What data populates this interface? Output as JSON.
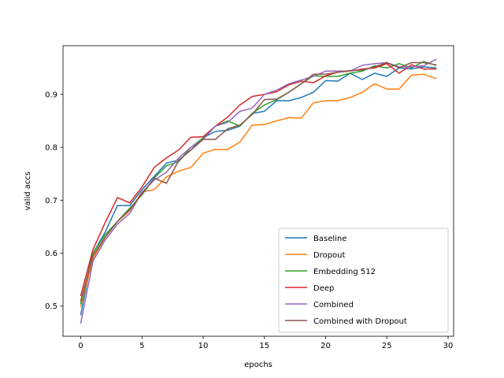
{
  "chart_data": {
    "type": "line",
    "xlabel": "epochs",
    "ylabel": "valid accs",
    "xlim": [
      -1.45,
      30.45
    ],
    "ylim": [
      0.443,
      0.992
    ],
    "xticks": [
      0,
      5,
      10,
      15,
      20,
      25,
      30
    ],
    "yticks": [
      0.5,
      0.6,
      0.7,
      0.8,
      0.9
    ],
    "xtick_labels": [
      "0",
      "5",
      "10",
      "15",
      "20",
      "25",
      "30"
    ],
    "ytick_labels": [
      "0.5",
      "0.6",
      "0.7",
      "0.8",
      "0.9"
    ],
    "grid": false,
    "legend_position": "lower-right",
    "x": [
      0,
      1,
      2,
      3,
      4,
      5,
      6,
      7,
      8,
      9,
      10,
      11,
      12,
      13,
      14,
      15,
      16,
      17,
      18,
      19,
      20,
      21,
      22,
      23,
      24,
      25,
      26,
      27,
      28,
      29
    ],
    "series": [
      {
        "name": "Baseline",
        "color": "#1f77b4",
        "values": [
          0.484,
          0.6,
          0.64,
          0.69,
          0.69,
          0.72,
          0.745,
          0.77,
          0.776,
          0.795,
          0.818,
          0.83,
          0.832,
          0.84,
          0.864,
          0.868,
          0.888,
          0.888,
          0.894,
          0.904,
          0.926,
          0.925,
          0.94,
          0.928,
          0.94,
          0.934,
          0.95,
          0.948,
          0.952,
          0.95
        ]
      },
      {
        "name": "Dropout",
        "color": "#ff7f0e",
        "values": [
          0.5,
          0.59,
          0.63,
          0.66,
          0.68,
          0.716,
          0.72,
          0.744,
          0.755,
          0.762,
          0.789,
          0.796,
          0.796,
          0.81,
          0.842,
          0.843,
          0.85,
          0.856,
          0.855,
          0.884,
          0.888,
          0.888,
          0.894,
          0.904,
          0.92,
          0.91,
          0.91,
          0.936,
          0.938,
          0.93
        ]
      },
      {
        "name": "Embedding 512",
        "color": "#2ca02c",
        "values": [
          0.505,
          0.6,
          0.635,
          0.66,
          0.685,
          0.71,
          0.742,
          0.765,
          0.773,
          0.8,
          0.818,
          0.84,
          0.85,
          0.84,
          0.864,
          0.88,
          0.89,
          0.904,
          0.92,
          0.935,
          0.934,
          0.934,
          0.94,
          0.944,
          0.954,
          0.95,
          0.958,
          0.95,
          0.962,
          0.955
        ]
      },
      {
        "name": "Deep",
        "color": "#d62728",
        "values": [
          0.52,
          0.607,
          0.658,
          0.705,
          0.695,
          0.725,
          0.762,
          0.78,
          0.795,
          0.819,
          0.82,
          0.84,
          0.857,
          0.88,
          0.896,
          0.9,
          0.905,
          0.918,
          0.925,
          0.922,
          0.935,
          0.942,
          0.944,
          0.948,
          0.95,
          0.958,
          0.94,
          0.956,
          0.948,
          0.948
        ]
      },
      {
        "name": "Combined",
        "color": "#9467bd",
        "values": [
          0.468,
          0.585,
          0.625,
          0.655,
          0.675,
          0.715,
          0.738,
          0.753,
          0.78,
          0.8,
          0.815,
          0.84,
          0.847,
          0.868,
          0.874,
          0.9,
          0.908,
          0.92,
          0.927,
          0.934,
          0.944,
          0.944,
          0.944,
          0.955,
          0.958,
          0.96,
          0.952,
          0.952,
          0.954,
          0.966
        ]
      },
      {
        "name": "Combined with Dropout",
        "color": "#8c564b",
        "values": [
          0.51,
          0.595,
          0.63,
          0.66,
          0.682,
          0.712,
          0.742,
          0.732,
          0.775,
          0.795,
          0.815,
          0.815,
          0.835,
          0.842,
          0.862,
          0.89,
          0.891,
          0.904,
          0.92,
          0.938,
          0.938,
          0.942,
          0.945,
          0.946,
          0.952,
          0.96,
          0.95,
          0.96,
          0.96,
          0.956
        ]
      }
    ]
  }
}
